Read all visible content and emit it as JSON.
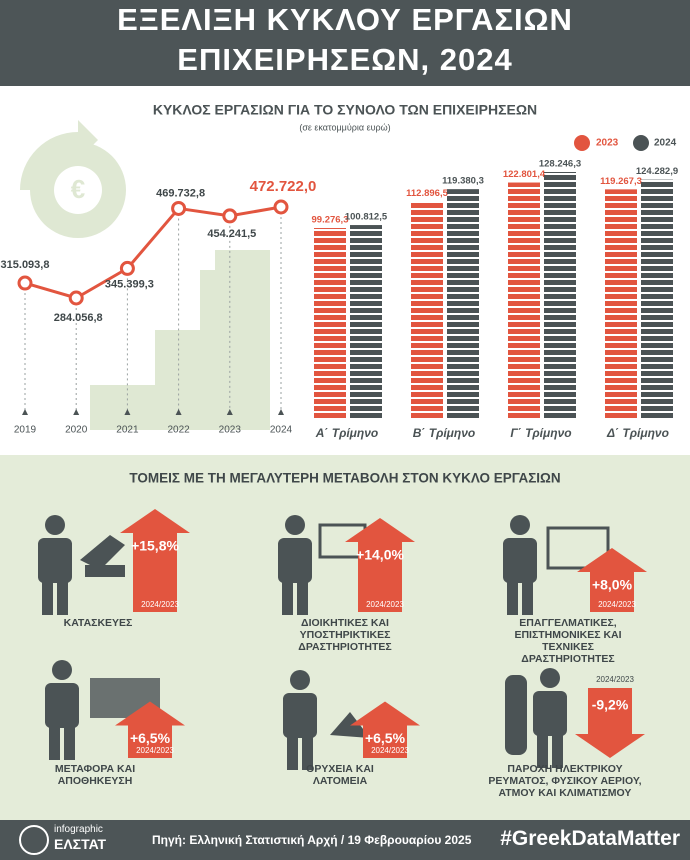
{
  "header": {
    "title_lines": [
      "ΕΞΕΛΙΞΗ ΚΥΚΛΟΥ ΕΡΓΑΣΙΩΝ",
      "ΕΠΙΧΕΙΡΗΣΕΩΝ, 2024"
    ]
  },
  "chart_data": [
    {
      "type": "line",
      "title": "ΚΥΚΛΟΣ ΕΡΓΑΣΙΩΝ ΓΙΑ ΤΟ ΣΥΝΟΛΟ ΤΩΝ ΕΠΙΧΕΙΡΗΣΕΩΝ",
      "subtitle": "(σε εκατομμύρια ευρώ)",
      "x": [
        2019,
        2020,
        2021,
        2022,
        2023,
        2024
      ],
      "values": [
        315093.8,
        284056.8,
        345399.3,
        469732.8,
        454241.5,
        472722.0
      ],
      "value_labels": [
        "315.093,8",
        "284.056,8",
        "345.399,3",
        "469.732,8",
        "454.241,5",
        "472.722,0"
      ],
      "color": "#e2553f"
    },
    {
      "type": "bar",
      "categories": [
        "Α΄ Τρίμηνο",
        "Β΄ Τρίμηνο",
        "Γ΄ Τρίμηνο",
        "Δ΄ Τρίμηνο"
      ],
      "series": [
        {
          "name": "2023",
          "color": "#e2553f",
          "values": [
            99276.3,
            112896.5,
            122801.4,
            119267.3
          ],
          "value_labels": [
            "99.276,3",
            "112.896,5",
            "122.801,4",
            "119.267,3"
          ]
        },
        {
          "name": "2024",
          "color": "#4b5355",
          "values": [
            100812.5,
            119380.3,
            128246.3,
            124282.9
          ],
          "value_labels": [
            "100.812,5",
            "119.380,3",
            "128.246,3",
            "124.282,9"
          ]
        }
      ]
    },
    {
      "type": "arrow",
      "title": "ΤΟΜΕΙΣ ΜΕ ΤΗ ΜΕΓΑΛΥΤΕΡΗ ΜΕΤΑΒΟΛΗ ΣΤΟΝ ΚΥΚΛΟ ΕΡΓΑΣΙΩΝ",
      "categories": [
        "ΚΑΤΑΣΚΕΥΕΣ",
        "ΔΙΟΙΚΗΤΙΚΕΣ ΚΑΙ ΥΠΟΣΤΗΡΙΚΤΙΚΕΣ ΔΡΑΣΤΗΡΙΟΤΗΤΕΣ",
        "ΕΠΑΓΓΕΛΜΑΤΙΚΕΣ, ΕΠΙΣΤΗΜΟΝΙΚΕΣ ΚΑΙ ΤΕΧΝΙΚΕΣ ΔΡΑΣΤΗΡΙΟΤΗΤΕΣ",
        "ΜΕΤΑΦΟΡΑ ΚΑΙ ΑΠΟΘΗΚΕΥΣΗ",
        "ΟΡΥΧΕΙΑ ΚΑΙ ΛΑΤΟΜΕΙΑ",
        "ΠΑΡΟΧΗ ΗΛΕΚΤΡΙΚΟΥ ΡΕΥΜΑΤΟΣ, ΦΥΣΙΚΟΥ ΑΕΡΙΟΥ, ΑΤΜΟΥ ΚΑΙ ΚΛΙΜΑΤΙΣΜΟΥ"
      ],
      "values": [
        15.8,
        14.0,
        8.0,
        6.5,
        6.5,
        -9.2
      ],
      "value_labels": [
        "+15,8%",
        "+14,0%",
        "+8,0%",
        "+6,5%",
        "+6,5%",
        "-9,2%"
      ],
      "period_label": "2024/2023",
      "color": "#e2553f"
    }
  ],
  "footer": {
    "logo_top": "infographic",
    "logo_bottom": "ΕΛΣΤΑΤ",
    "source": "Πηγή: Ελληνική Στατιστική Αρχή / 19 Φεβρουαρίου 2025",
    "hashtag": "#GreekDataMatter"
  }
}
